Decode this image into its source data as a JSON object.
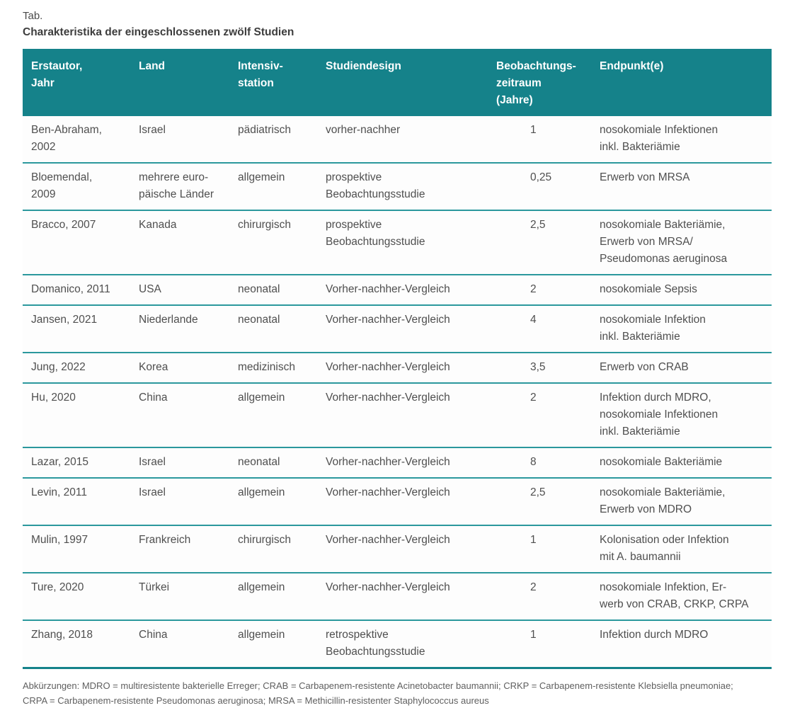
{
  "doc": {
    "tab_label": "Tab.",
    "title": "Charakteristika der eingeschlossenen zwölf Studien"
  },
  "colors": {
    "header_background": "#15828a",
    "row_divider": "#2b989d",
    "header_text": "#ffffff",
    "body_text": "#4f4f4f"
  },
  "table": {
    "columns": [
      {
        "label": "Erstautor,\nJahr"
      },
      {
        "label": "Land"
      },
      {
        "label": "Intensiv-\nstation"
      },
      {
        "label": "Studiendesign"
      },
      {
        "label": "Beobachtungs-\nzeitraum\n(Jahre)"
      },
      {
        "label": "Endpunkt(e)"
      }
    ],
    "rows": [
      {
        "cells": [
          "Ben-Abraham,\n2002",
          "Israel",
          "pädiatrisch",
          "vorher-nachher",
          "1",
          "nosokomiale Infektionen\ninkl. Bakteriämie"
        ]
      },
      {
        "cells": [
          "Bloemendal,\n2009",
          "mehrere euro-\npäische Länder",
          "allgemein",
          "prospektive\nBeobachtungsstudie",
          "0,25",
          "Erwerb von MRSA"
        ]
      },
      {
        "cells": [
          "Bracco, 2007",
          "Kanada",
          "chirurgisch",
          "prospektive\nBeobachtungsstudie",
          "2,5",
          "nosokomiale Bakteriämie,\nErwerb von MRSA/\nPseudomonas aeruginosa"
        ]
      },
      {
        "cells": [
          "Domanico, 2011",
          "USA",
          "neonatal",
          "Vorher-nachher-Vergleich",
          "2",
          "nosokomiale Sepsis"
        ]
      },
      {
        "cells": [
          "Jansen, 2021",
          "Niederlande",
          "neonatal",
          "Vorher-nachher-Vergleich",
          "4",
          "nosokomiale Infektion\ninkl. Bakteriämie"
        ]
      },
      {
        "cells": [
          "Jung, 2022",
          "Korea",
          "medizinisch",
          "Vorher-nachher-Vergleich",
          "3,5",
          "Erwerb von CRAB"
        ]
      },
      {
        "cells": [
          "Hu, 2020",
          "China",
          "allgemein",
          "Vorher-nachher-Vergleich",
          "2",
          "Infektion durch MDRO,\nnosokomiale Infektionen\ninkl. Bakteriämie"
        ]
      },
      {
        "cells": [
          "Lazar, 2015",
          "Israel",
          "neonatal",
          "Vorher-nachher-Vergleich",
          "8",
          "nosokomiale Bakteriämie"
        ]
      },
      {
        "cells": [
          "Levin, 2011",
          "Israel",
          "allgemein",
          "Vorher-nachher-Vergleich",
          "2,5",
          "nosokomiale Bakteriämie,\nErwerb von MDRO"
        ]
      },
      {
        "cells": [
          "Mulin, 1997",
          "Frankreich",
          "chirurgisch",
          "Vorher-nachher-Vergleich",
          "1",
          "Kolonisation oder Infektion\nmit A. baumannii"
        ]
      },
      {
        "cells": [
          "Ture, 2020",
          "Türkei",
          "allgemein",
          "Vorher-nachher-Vergleich",
          "2",
          "nosokomiale Infektion, Er-\nwerb von CRAB, CRKP, CRPA"
        ]
      },
      {
        "cells": [
          "Zhang, 2018",
          "China",
          "allgemein",
          "retrospektive\nBeobachtungsstudie",
          "1",
          "Infektion durch MDRO"
        ]
      }
    ]
  },
  "footnote": "Abkürzungen: MDRO = multiresistente bakterielle Erreger; CRAB = Carbapenem-resistente Acinetobacter baumannii; CRKP = Carbapenem-resistente Klebsiella pneumoniae;\nCRPA = Carbapenem-resistente Pseudomonas aeruginosa; MRSA = Methicillin-resistenter Staphylococcus aureus"
}
